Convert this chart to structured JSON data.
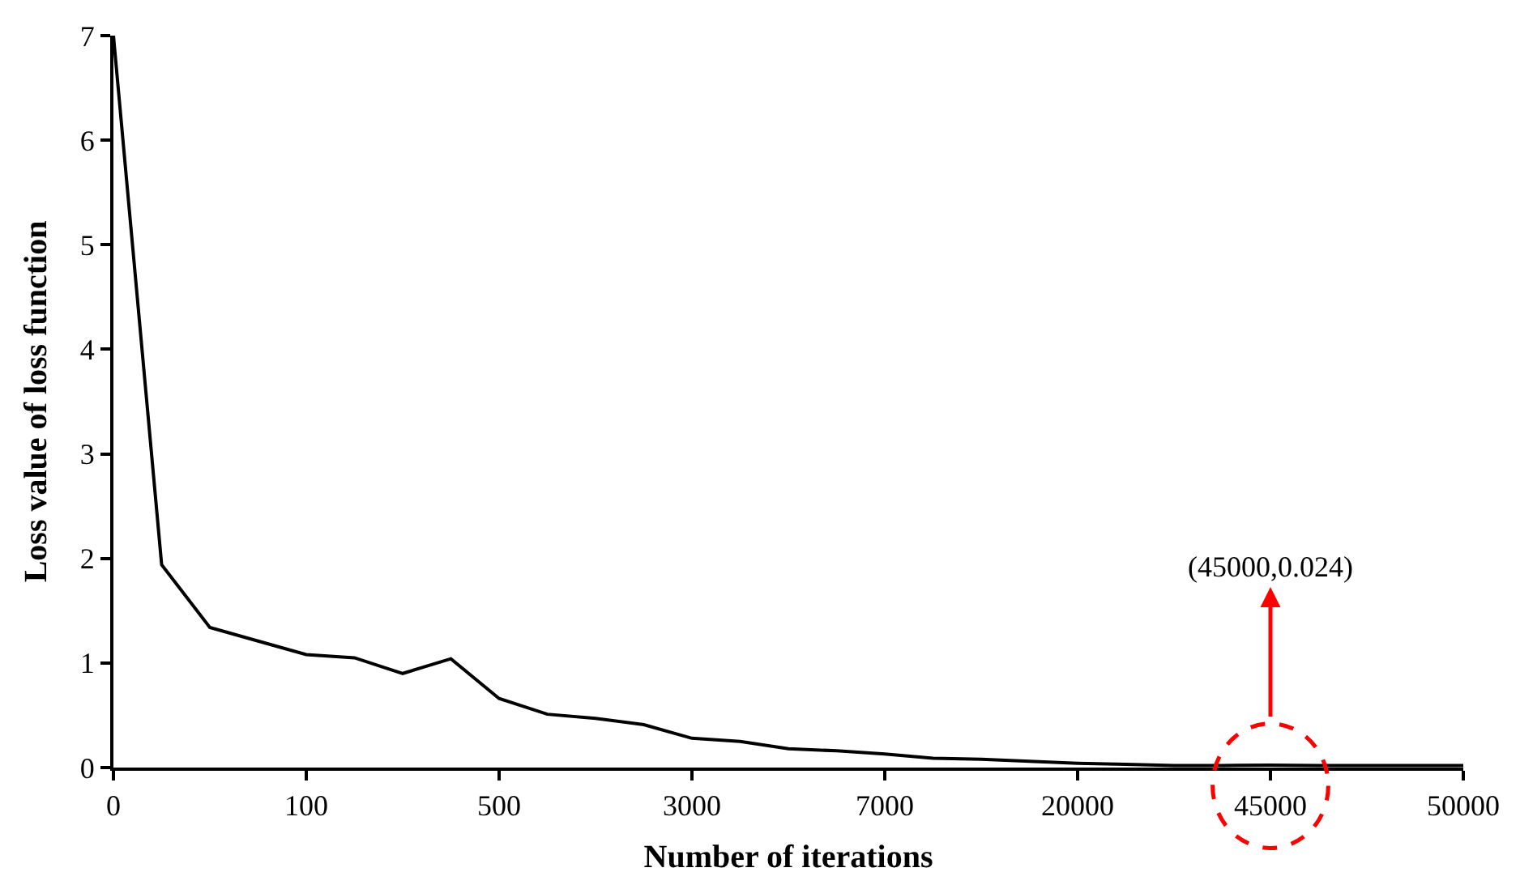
{
  "chart_data": {
    "type": "line",
    "xlabel": "Number of iterations",
    "ylabel": "Loss value of loss function",
    "categories": [
      "0",
      null,
      null,
      null,
      "100",
      null,
      null,
      null,
      "500",
      null,
      null,
      null,
      "3000",
      null,
      null,
      null,
      "7000",
      null,
      null,
      null,
      "20000",
      null,
      null,
      null,
      "45000",
      null,
      null,
      null,
      "50000"
    ],
    "series": [
      {
        "color": "#000000",
        "values": [
          7.0,
          1.94,
          1.34,
          1.21,
          1.08,
          1.05,
          0.9,
          1.04,
          0.66,
          0.51,
          0.47,
          0.41,
          0.28,
          0.25,
          0.18,
          0.16,
          0.13,
          0.09,
          0.08,
          0.06,
          0.04,
          0.03,
          0.02,
          0.02,
          0.024,
          0.02,
          0.02,
          0.02,
          0.02
        ]
      }
    ],
    "ylim": [
      0,
      7
    ],
    "yticks": [
      0,
      1,
      2,
      3,
      4,
      5,
      6,
      7
    ],
    "annotations": [
      {
        "text": "(45000,0.024)",
        "x": "45000",
        "y": 0.024
      }
    ],
    "marker": "none",
    "line_style": "solid"
  }
}
